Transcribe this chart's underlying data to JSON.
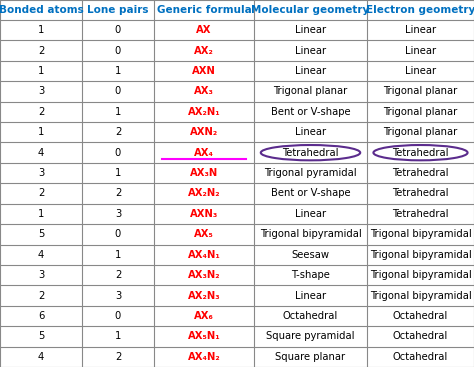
{
  "headers": [
    "Bonded atoms",
    "Lone pairs",
    "Generic formula",
    "Molecular geometry",
    "Electron geometry"
  ],
  "header_color": "#0070C0",
  "rows": [
    [
      "1",
      "0",
      "AX",
      "Linear",
      "Linear"
    ],
    [
      "2",
      "0",
      "AX₂",
      "Linear",
      "Linear"
    ],
    [
      "1",
      "1",
      "AXN",
      "Linear",
      "Linear"
    ],
    [
      "3",
      "0",
      "AX₃",
      "Trigonal planar",
      "Trigonal planar"
    ],
    [
      "2",
      "1",
      "AX₂N₁",
      "Bent or V-shape",
      "Trigonal planar"
    ],
    [
      "1",
      "2",
      "AXN₂",
      "Linear",
      "Trigonal planar"
    ],
    [
      "4",
      "0",
      "AX₄",
      "Tetrahedral",
      "Tetrahedral"
    ],
    [
      "3",
      "1",
      "AX₃N",
      "Trigonal pyramidal",
      "Tetrahedral"
    ],
    [
      "2",
      "2",
      "AX₂N₂",
      "Bent or V-shape",
      "Tetrahedral"
    ],
    [
      "1",
      "3",
      "AXN₃",
      "Linear",
      "Tetrahedral"
    ],
    [
      "5",
      "0",
      "AX₅",
      "Trigonal bipyramidal",
      "Trigonal bipyramidal"
    ],
    [
      "4",
      "1",
      "AX₄N₁",
      "Seesaw",
      "Trigonal bipyramidal"
    ],
    [
      "3",
      "2",
      "AX₃N₂",
      "T-shape",
      "Trigonal bipyramidal"
    ],
    [
      "2",
      "3",
      "AX₂N₃",
      "Linear",
      "Trigonal bipyramidal"
    ],
    [
      "6",
      "0",
      "AX₆",
      "Octahedral",
      "Octahedral"
    ],
    [
      "5",
      "1",
      "AX₅N₁",
      "Square pyramidal",
      "Octahedral"
    ],
    [
      "4",
      "2",
      "AX₄N₂",
      "Square planar",
      "Octahedral"
    ]
  ],
  "formula_color": "#FF0000",
  "text_color": "#000000",
  "bg_color": "#FFFFFF",
  "grid_color": "#888888",
  "highlight_row": 6,
  "highlight_underline_color": "#FF00FF",
  "circle_color": "#5B2C8D",
  "header_fontsize": 7.5,
  "cell_fontsize": 7.2
}
